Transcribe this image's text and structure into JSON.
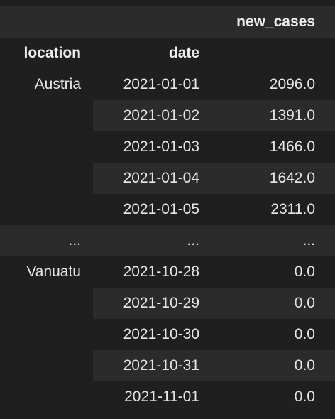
{
  "header": {
    "value_column": "new_cases",
    "index_names": [
      "location",
      "date"
    ]
  },
  "rows": [
    {
      "location": "Austria",
      "date": "2021-01-01",
      "value": "2096.0"
    },
    {
      "location": "",
      "date": "2021-01-02",
      "value": "1391.0"
    },
    {
      "location": "",
      "date": "2021-01-03",
      "value": "1466.0"
    },
    {
      "location": "",
      "date": "2021-01-04",
      "value": "1642.0"
    },
    {
      "location": "",
      "date": "2021-01-05",
      "value": "2311.0"
    },
    {
      "location": "...",
      "date": "...",
      "value": "..."
    },
    {
      "location": "Vanuatu",
      "date": "2021-10-28",
      "value": "0.0"
    },
    {
      "location": "",
      "date": "2021-10-29",
      "value": "0.0"
    },
    {
      "location": "",
      "date": "2021-10-30",
      "value": "0.0"
    },
    {
      "location": "",
      "date": "2021-10-31",
      "value": "0.0"
    },
    {
      "location": "",
      "date": "2021-11-01",
      "value": "0.0"
    }
  ]
}
